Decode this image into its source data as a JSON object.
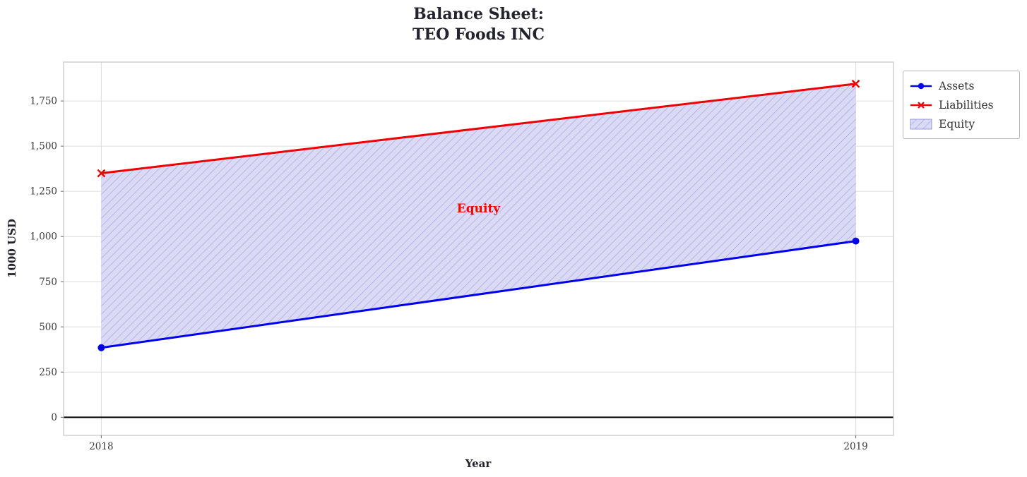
{
  "title_line1": "Balance Sheet:",
  "title_line2": "TEO Foods INC",
  "chart_data": {
    "type": "line",
    "title": "Balance Sheet:\nTEO Foods INC",
    "x": [
      2018,
      2019
    ],
    "series": [
      {
        "name": "Assets",
        "values": [
          385,
          975
        ],
        "color": "#0000ee",
        "marker": "circle"
      },
      {
        "name": "Liabilities",
        "values": [
          1350,
          1845
        ],
        "color": "#ee0000",
        "marker": "x"
      }
    ],
    "fill_between": {
      "name": "Equity",
      "between": [
        "Assets",
        "Liabilities"
      ],
      "facecolor": "#dadaf5",
      "hatch": "//",
      "hatch_color": "#9898e0"
    },
    "annotation": {
      "text": "Equity",
      "color": "#ff0000",
      "x": 2018.5,
      "y": 1155
    },
    "xlabel": "Year",
    "ylabel": "1000 USD",
    "xlim": [
      2017.95,
      2019.05
    ],
    "ylim": [
      -100,
      1965
    ],
    "xticks": [
      2018,
      2019
    ],
    "xtick_labels": [
      "2018",
      "2019"
    ],
    "yticks": [
      0,
      250,
      500,
      750,
      1000,
      1250,
      1500,
      1750
    ],
    "ytick_labels": [
      "0",
      "250",
      "500",
      "750",
      "1,000",
      "1,250",
      "1,500",
      "1,750"
    ],
    "zero_line": {
      "y": 0,
      "color": "#000000"
    },
    "grid": true,
    "grid_color": "#dcdcdc",
    "spine_color": "#c8c8c8",
    "legend": {
      "location": "upper-right-outside"
    }
  }
}
